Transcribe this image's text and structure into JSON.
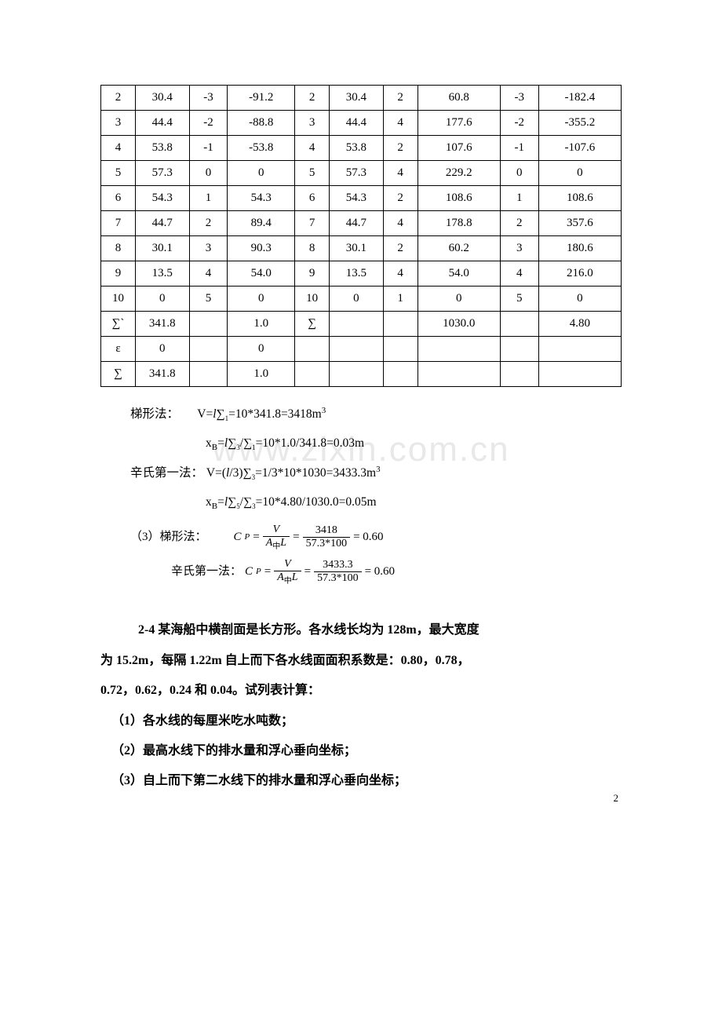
{
  "table": {
    "rows": [
      [
        "2",
        "30.4",
        "-3",
        "-91.2",
        "2",
        "30.4",
        "2",
        "60.8",
        "-3",
        "-182.4"
      ],
      [
        "3",
        "44.4",
        "-2",
        "-88.8",
        "3",
        "44.4",
        "4",
        "177.6",
        "-2",
        "-355.2"
      ],
      [
        "4",
        "53.8",
        "-1",
        "-53.8",
        "4",
        "53.8",
        "2",
        "107.6",
        "-1",
        "-107.6"
      ],
      [
        "5",
        "57.3",
        "0",
        "0",
        "5",
        "57.3",
        "4",
        "229.2",
        "0",
        "0"
      ],
      [
        "6",
        "54.3",
        "1",
        "54.3",
        "6",
        "54.3",
        "2",
        "108.6",
        "1",
        "108.6"
      ],
      [
        "7",
        "44.7",
        "2",
        "89.4",
        "7",
        "44.7",
        "4",
        "178.8",
        "2",
        "357.6"
      ],
      [
        "8",
        "30.1",
        "3",
        "90.3",
        "8",
        "30.1",
        "2",
        "60.2",
        "3",
        "180.6"
      ],
      [
        "9",
        "13.5",
        "4",
        "54.0",
        "9",
        "13.5",
        "4",
        "54.0",
        "4",
        "216.0"
      ],
      [
        "10",
        "0",
        "5",
        "0",
        "10",
        "0",
        "1",
        "0",
        "5",
        "0"
      ],
      [
        "∑`",
        "341.8",
        "",
        "1.0",
        "∑",
        "",
        "",
        "1030.0",
        "",
        "4.80"
      ],
      [
        "ε",
        "0",
        "",
        "0",
        "",
        "",
        "",
        "",
        "",
        ""
      ],
      [
        "∑",
        "341.8",
        "",
        "1.0",
        "",
        "",
        "",
        "",
        "",
        ""
      ]
    ]
  },
  "formulas": {
    "l1_label": "梯形法：",
    "l1_body": "V=l∑₁=10*341.8=3418m",
    "l1_sup": "3",
    "l2_body": "xB=l∑₃/∑₁=10*1.0/341.8=0.03m",
    "l3_label": "辛氏第一法：",
    "l3_body": "V=(l/3)∑₃=1/3*10*1030=3433.3m",
    "l3_sup": "3",
    "l4_body": "xB=l∑₅/∑₃=10*4.80/1030.0=0.05m",
    "cp1_prefix": "（3）梯形法：",
    "cp1_lhs": "C",
    "cp1_lhs_sub": "P",
    "cp1_frac1_num": "V",
    "cp1_frac1_den_a": "A",
    "cp1_frac1_den_sub": "中",
    "cp1_frac1_den_b": "L",
    "cp1_frac2_num": "3418",
    "cp1_frac2_den": "57.3*100",
    "cp1_result": "= 0.60",
    "cp2_prefix": "辛氏第一法：",
    "cp2_frac2_num": "3433.3",
    "cp2_result": "= 0.60"
  },
  "body": {
    "p1a": "2-4 某海船中横剖面是长方形。各水线长均为 128m，最大宽度",
    "p1b": "为 15.2m，每隔 1.22m 自上而下各水线面面积系数是：0.80，0.78，",
    "p1c": "0.72，0.62，0.24 和 0.04。试列表计算：",
    "li1": "（1）各水线的每厘米吃水吨数；",
    "li2": "（2）最高水线下的排水量和浮心垂向坐标；",
    "li3": "（3）自上而下第二水线下的排水量和浮心垂向坐标；"
  },
  "watermark": "www.zixin.com.cn",
  "pagenum": "2"
}
